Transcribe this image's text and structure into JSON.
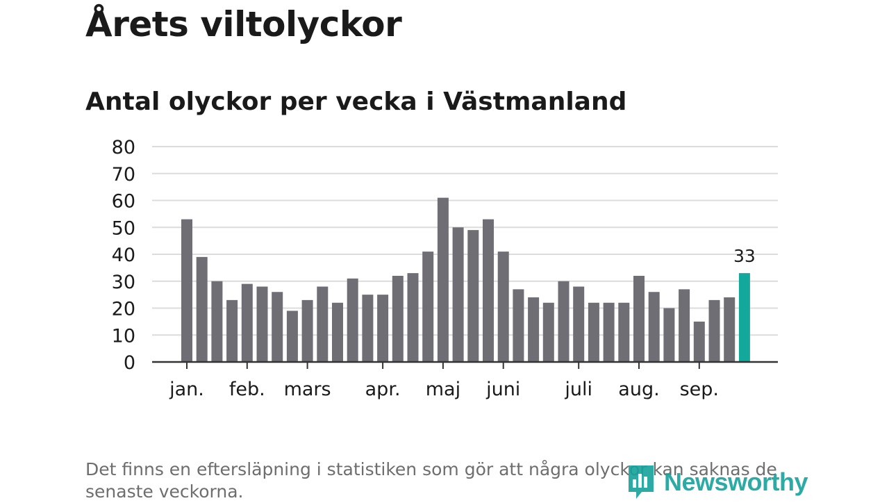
{
  "title": "Årets viltolyckor",
  "subtitle": "Antal olyckor per vecka i Västmanland",
  "footnote": "Det finns en eftersläpning i statistiken som gör att några olyckor kan saknas de senaste veckorna.",
  "logo": {
    "text": "Newsworthy",
    "icon": "newsworthy-logo-icon"
  },
  "colors": {
    "bar": "#6f6e74",
    "highlight": "#12a89c",
    "grid": "#dcdcdc",
    "axis": "#333333",
    "text": "#1a1a1a"
  },
  "chart_data": {
    "type": "bar",
    "title": "Antal olyckor per vecka i Västmanland",
    "xlabel": "",
    "ylabel": "",
    "ylim": [
      0,
      80
    ],
    "yticks": [
      0,
      10,
      20,
      30,
      40,
      50,
      60,
      70,
      80
    ],
    "values": [
      53,
      39,
      30,
      23,
      29,
      28,
      26,
      19,
      23,
      28,
      22,
      31,
      25,
      25,
      32,
      33,
      41,
      61,
      50,
      49,
      53,
      41,
      27,
      24,
      22,
      30,
      28,
      22,
      22,
      22,
      32,
      26,
      20,
      27,
      15,
      23,
      24,
      33
    ],
    "month_labels": [
      {
        "label": "jan.",
        "index": 0
      },
      {
        "label": "feb.",
        "index": 4
      },
      {
        "label": "mars",
        "index": 8
      },
      {
        "label": "apr.",
        "index": 13
      },
      {
        "label": "maj",
        "index": 17
      },
      {
        "label": "juni",
        "index": 21
      },
      {
        "label": "juli",
        "index": 26
      },
      {
        "label": "aug.",
        "index": 30
      },
      {
        "label": "sep.",
        "index": 34
      }
    ],
    "highlight_index": 37,
    "highlight_label": "33",
    "grid": true
  }
}
